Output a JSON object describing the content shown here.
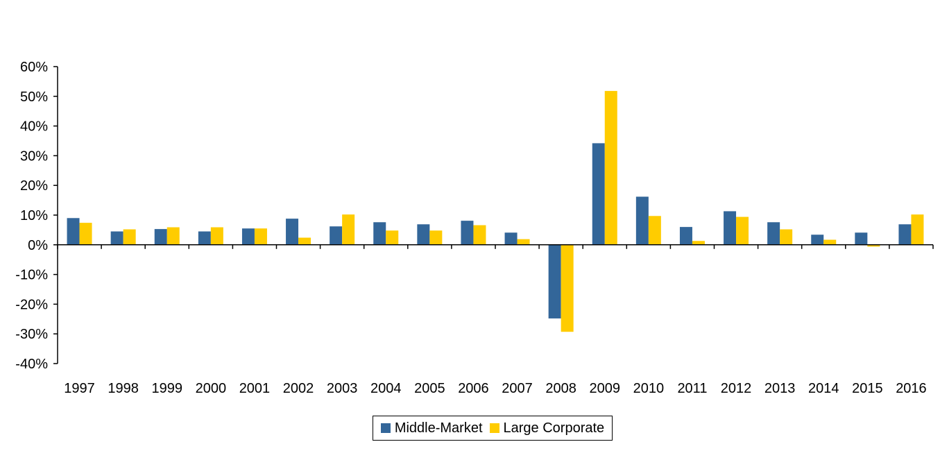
{
  "colors": {
    "middle_market": "#336699",
    "large_corporate": "#FFCC00",
    "axis": "#000000"
  },
  "chart_data": {
    "type": "bar",
    "categories": [
      "1997",
      "1998",
      "1999",
      "2000",
      "2001",
      "2002",
      "2003",
      "2004",
      "2005",
      "2006",
      "2007",
      "2008",
      "2009",
      "2010",
      "2011",
      "2012",
      "2013",
      "2014",
      "2015",
      "2016"
    ],
    "series": [
      {
        "name": "Middle-Market",
        "values": [
          9.0,
          4.5,
          5.3,
          4.5,
          5.5,
          8.8,
          6.2,
          7.6,
          6.9,
          8.1,
          4.1,
          -24.8,
          34.2,
          16.2,
          6.0,
          11.3,
          7.6,
          3.4,
          4.1,
          6.9
        ]
      },
      {
        "name": "Large Corporate",
        "values": [
          7.4,
          5.2,
          5.9,
          5.9,
          5.5,
          2.4,
          10.2,
          4.8,
          4.8,
          6.6,
          1.9,
          -29.3,
          51.8,
          9.7,
          1.3,
          9.4,
          5.2,
          1.7,
          -0.6,
          10.2
        ]
      }
    ],
    "yticks": [
      "60%",
      "50%",
      "40%",
      "30%",
      "20%",
      "10%",
      "0%",
      "-10%",
      "-20%",
      "-30%",
      "-40%"
    ],
    "ylim": [
      -40,
      60
    ],
    "legend": {
      "position": "bottom-center",
      "labels": [
        "Middle-Market",
        "Large Corporate"
      ]
    },
    "grid": false
  }
}
